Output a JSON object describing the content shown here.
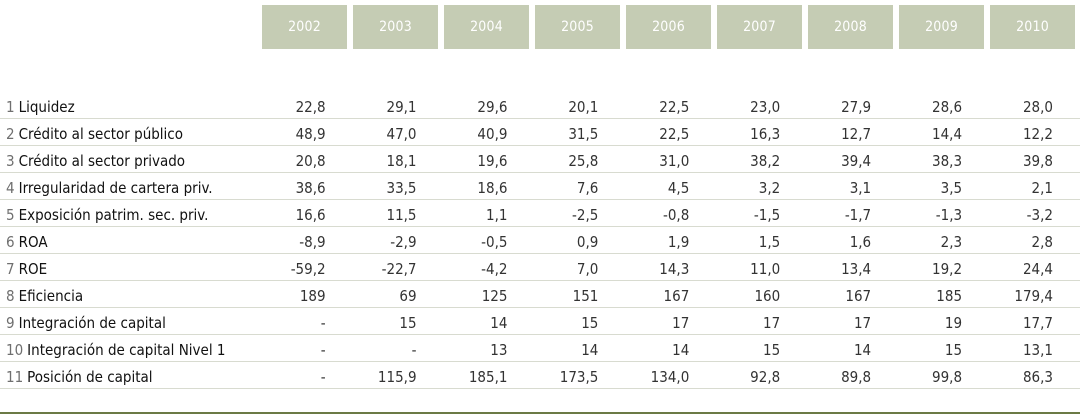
{
  "years": [
    "2002",
    "2003",
    "2004",
    "2005",
    "2006",
    "2007",
    "2008",
    "2009",
    "2010"
  ],
  "rows": [
    {
      "num": "1",
      "label": "Liquidez",
      "values": [
        "22,8",
        "29,1",
        "29,6",
        "20,1",
        "22,5",
        "23,0",
        "27,9",
        "28,6",
        "28,0"
      ]
    },
    {
      "num": "2",
      "label": "Crédito al sector público",
      "values": [
        "48,9",
        "47,0",
        "40,9",
        "31,5",
        "22,5",
        "16,3",
        "12,7",
        "14,4",
        "12,2"
      ]
    },
    {
      "num": "3",
      "label": "Crédito al sector privado",
      "values": [
        "20,8",
        "18,1",
        "19,6",
        "25,8",
        "31,0",
        "38,2",
        "39,4",
        "38,3",
        "39,8"
      ]
    },
    {
      "num": "4",
      "label": "Irregularidad de cartera priv.",
      "values": [
        "38,6",
        "33,5",
        "18,6",
        "7,6",
        "4,5",
        "3,2",
        "3,1",
        "3,5",
        "2,1"
      ]
    },
    {
      "num": "5",
      "label": "Exposición patrim. sec. priv.",
      "values": [
        "16,6",
        "11,5",
        "1,1",
        "-2,5",
        "-0,8",
        "-1,5",
        "-1,7",
        "-1,3",
        "-3,2"
      ]
    },
    {
      "num": "6",
      "label": "ROA",
      "values": [
        "-8,9",
        "-2,9",
        "-0,5",
        "0,9",
        "1,9",
        "1,5",
        "1,6",
        "2,3",
        "2,8"
      ]
    },
    {
      "num": "7",
      "label": "ROE",
      "values": [
        "-59,2",
        "-22,7",
        "-4,2",
        "7,0",
        "14,3",
        "11,0",
        "13,4",
        "19,2",
        "24,4"
      ]
    },
    {
      "num": "8",
      "label": "Eficiencia",
      "values": [
        "189",
        "69",
        "125",
        "151",
        "167",
        "160",
        "167",
        "185",
        "179,4"
      ]
    },
    {
      "num": "9",
      "label": "Integración de capital",
      "values": [
        "-",
        "15",
        "14",
        "15",
        "17",
        "17",
        "17",
        "19",
        "17,7"
      ]
    },
    {
      "num": "10",
      "label": "Integración de capital Nivel 1",
      "values": [
        "-",
        "-",
        "13",
        "14",
        "14",
        "15",
        "14",
        "15",
        "13,1"
      ]
    },
    {
      "num": "11",
      "label": "Posición de capital",
      "values": [
        "-",
        "115,9",
        "185,1",
        "173,5",
        "134,0",
        "92,8",
        "89,8",
        "99,8",
        "86,3"
      ]
    }
  ],
  "colors": {
    "header_bg": "#c5ccb4",
    "header_text": "#ffffff",
    "rule": "#6b7a45"
  }
}
